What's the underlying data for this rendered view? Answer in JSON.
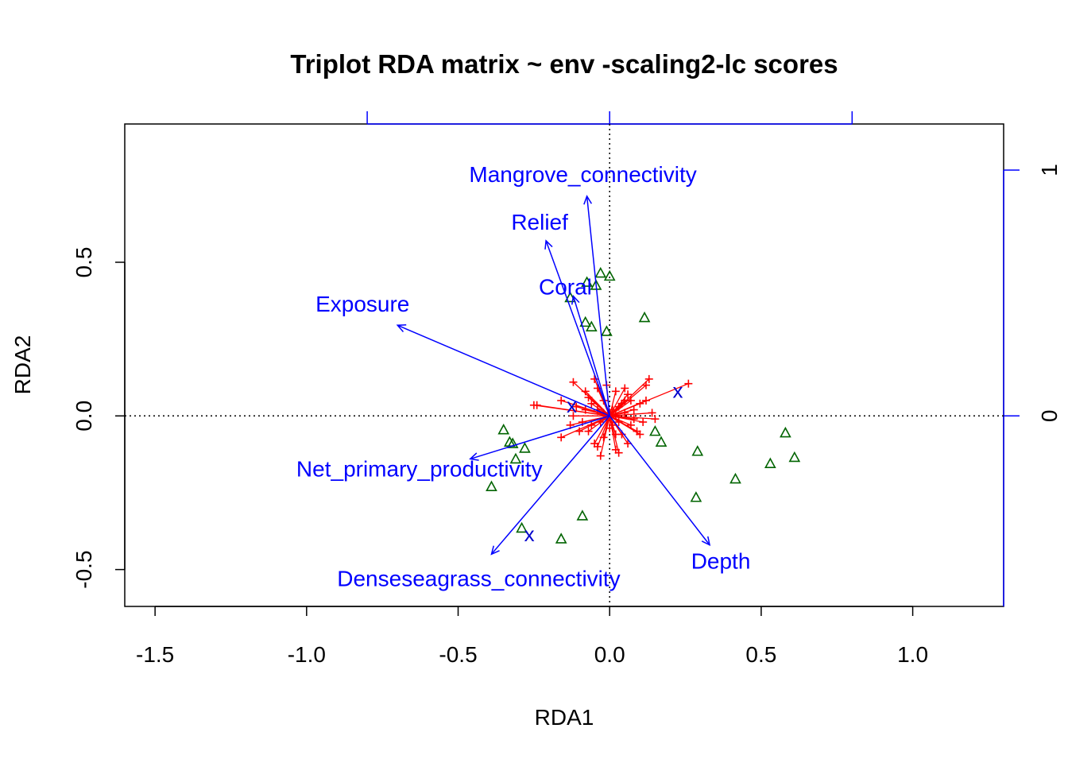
{
  "colors": {
    "env": "#0000ff",
    "species": "#ff0000",
    "sites": "#006400",
    "centroid": "#0000cc",
    "frame": "#000000"
  },
  "chart_data": {
    "type": "scatter",
    "title": "Triplot RDA matrix ~ env -scaling2-lc scores",
    "xlabel": "RDA1",
    "ylabel": "RDA2",
    "xlim": [
      -1.6,
      1.3
    ],
    "ylim": [
      -0.62,
      0.95
    ],
    "x_ticks": [
      "-1.5",
      "-1.0",
      "-0.5",
      "0.0",
      "0.5",
      "1.0"
    ],
    "x_tick_values": [
      -1.5,
      -1.0,
      -0.5,
      0.0,
      0.5,
      1.0
    ],
    "y_ticks": [
      "-0.5",
      "0.0",
      "0.5"
    ],
    "y_tick_values": [
      -0.5,
      0.0,
      0.5
    ],
    "top_axis_ticks": [
      -0.8,
      0.0,
      0.8
    ],
    "right_axis_ticks": [
      "0",
      "1"
    ],
    "right_axis_values": [
      0.0,
      0.8
    ],
    "env_arrows": [
      {
        "name": "Mangrove_connectivity",
        "x": -0.075,
        "y": 0.715
      },
      {
        "name": "Relief",
        "x": -0.21,
        "y": 0.57
      },
      {
        "name": "Coral",
        "x": -0.12,
        "y": 0.39
      },
      {
        "name": "Exposure",
        "x": -0.7,
        "y": 0.295
      },
      {
        "name": "Net_primary_productivity",
        "x": -0.46,
        "y": -0.14
      },
      {
        "name": "Denseseagrass_connectivity",
        "x": -0.39,
        "y": -0.45
      },
      {
        "name": "Depth",
        "x": 0.33,
        "y": -0.42
      }
    ],
    "centroids": [
      {
        "label": "x",
        "x": -0.125,
        "y": 0.035
      },
      {
        "label": "x",
        "x": 0.225,
        "y": 0.082
      },
      {
        "label": "x",
        "x": -0.265,
        "y": -0.385
      }
    ],
    "sites": [
      {
        "x": -0.03,
        "y": 0.465
      },
      {
        "x": 0.0,
        "y": 0.455
      },
      {
        "x": -0.075,
        "y": 0.435
      },
      {
        "x": -0.045,
        "y": 0.425
      },
      {
        "x": -0.13,
        "y": 0.385
      },
      {
        "x": 0.115,
        "y": 0.32
      },
      {
        "x": -0.08,
        "y": 0.305
      },
      {
        "x": -0.06,
        "y": 0.29
      },
      {
        "x": -0.01,
        "y": 0.275
      },
      {
        "x": -0.35,
        "y": -0.045
      },
      {
        "x": -0.33,
        "y": -0.085
      },
      {
        "x": -0.32,
        "y": -0.09
      },
      {
        "x": -0.28,
        "y": -0.105
      },
      {
        "x": -0.31,
        "y": -0.14
      },
      {
        "x": -0.39,
        "y": -0.23
      },
      {
        "x": 0.15,
        "y": -0.05
      },
      {
        "x": 0.17,
        "y": -0.085
      },
      {
        "x": 0.29,
        "y": -0.115
      },
      {
        "x": 0.58,
        "y": -0.055
      },
      {
        "x": 0.61,
        "y": -0.135
      },
      {
        "x": 0.53,
        "y": -0.155
      },
      {
        "x": 0.415,
        "y": -0.205
      },
      {
        "x": 0.285,
        "y": -0.265
      },
      {
        "x": -0.09,
        "y": -0.325
      },
      {
        "x": -0.29,
        "y": -0.365
      },
      {
        "x": -0.16,
        "y": -0.4
      }
    ],
    "species": [
      {
        "x": 0.26,
        "y": 0.105
      },
      {
        "x": 0.13,
        "y": 0.12
      },
      {
        "x": 0.12,
        "y": 0.1
      },
      {
        "x": -0.12,
        "y": 0.11
      },
      {
        "x": -0.05,
        "y": 0.12
      },
      {
        "x": -0.24,
        "y": 0.035
      },
      {
        "x": -0.25,
        "y": 0.035
      },
      {
        "x": -0.16,
        "y": 0.05
      },
      {
        "x": -0.13,
        "y": -0.03
      },
      {
        "x": -0.16,
        "y": -0.07
      },
      {
        "x": 0.14,
        "y": 0.01
      },
      {
        "x": 0.09,
        "y": -0.05
      },
      {
        "x": 0.06,
        "y": -0.09
      },
      {
        "x": 0.03,
        "y": -0.12
      },
      {
        "x": 0.02,
        "y": -0.11
      },
      {
        "x": -0.03,
        "y": -0.13
      },
      {
        "x": -0.05,
        "y": -0.09
      },
      {
        "x": -0.08,
        "y": 0.08
      },
      {
        "x": -0.04,
        "y": 0.09
      },
      {
        "x": 0.06,
        "y": 0.07
      },
      {
        "x": 0.1,
        "y": 0.04
      },
      {
        "x": 0.08,
        "y": 0.02
      },
      {
        "x": 0.05,
        "y": 0.05
      },
      {
        "x": 0.02,
        "y": 0.08
      },
      {
        "x": -0.01,
        "y": 0.1
      },
      {
        "x": -0.11,
        "y": 0.03
      },
      {
        "x": -0.09,
        "y": -0.02
      },
      {
        "x": -0.07,
        "y": -0.05
      },
      {
        "x": -0.02,
        "y": -0.07
      },
      {
        "x": 0.04,
        "y": -0.06
      },
      {
        "x": 0.07,
        "y": -0.03
      },
      {
        "x": 0.11,
        "y": -0.02
      },
      {
        "x": -0.06,
        "y": 0.04
      },
      {
        "x": -0.04,
        "y": 0.02
      },
      {
        "x": 0.03,
        "y": 0.03
      },
      {
        "x": 0.01,
        "y": -0.03
      },
      {
        "x": -0.02,
        "y": 0.05
      },
      {
        "x": 0.05,
        "y": 0.01
      },
      {
        "x": -0.03,
        "y": -0.02
      },
      {
        "x": 0.02,
        "y": 0.0
      },
      {
        "x": 0.0,
        "y": 0.01
      },
      {
        "x": 0.01,
        "y": 0.02
      },
      {
        "x": -0.01,
        "y": -0.01
      },
      {
        "x": 0.03,
        "y": -0.02
      },
      {
        "x": -0.02,
        "y": 0.01
      },
      {
        "x": 0.04,
        "y": 0.04
      },
      {
        "x": 0.07,
        "y": 0.05
      },
      {
        "x": -0.06,
        "y": -0.03
      },
      {
        "x": 0.0,
        "y": -0.04
      },
      {
        "x": 0.02,
        "y": -0.06
      },
      {
        "x": 0.08,
        "y": -0.01
      },
      {
        "x": -0.08,
        "y": 0.02
      },
      {
        "x": -0.07,
        "y": 0.06
      },
      {
        "x": 0.05,
        "y": 0.09
      },
      {
        "x": -0.1,
        "y": -0.05
      },
      {
        "x": 0.12,
        "y": 0.05
      },
      {
        "x": 0.15,
        "y": -0.01
      },
      {
        "x": -0.12,
        "y": 0.0
      },
      {
        "x": 0.1,
        "y": -0.06
      },
      {
        "x": -0.04,
        "y": -0.1
      }
    ]
  }
}
